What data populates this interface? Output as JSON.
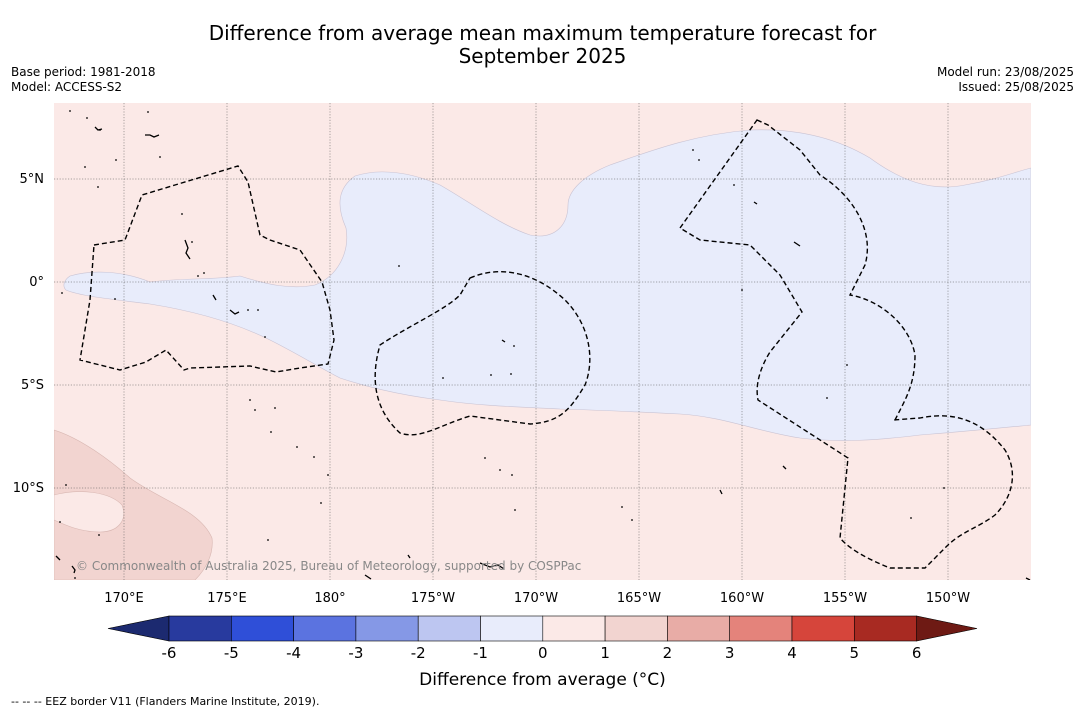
{
  "title": {
    "line1": "Difference from average mean maximum temperature forecast for",
    "line2": "September 2025"
  },
  "meta": {
    "base_period": "Base period: 1981-2018",
    "model": "Model: ACCESS-S2",
    "model_run": "Model run: 23/08/2025",
    "issued": "Issued: 25/08/2025"
  },
  "map": {
    "lon_labels": [
      "170°E",
      "175°E",
      "180°",
      "175°W",
      "170°W",
      "165°W",
      "160°W",
      "155°W",
      "150°W"
    ],
    "lat_labels": [
      "5°N",
      "0°",
      "5°S",
      "10°S"
    ],
    "copyright": "© Commonwealth of Australia 2025, Bureau of Meteorology, supported by COSPPac",
    "colors": {
      "anomaly_0_to_1": "#fbe9e7",
      "anomaly_1_to_2": "#f2d4d0",
      "anomaly_-1_to_0": "#e8ecfb"
    }
  },
  "colorbar": {
    "ticks": [
      "-6",
      "-5",
      "-4",
      "-3",
      "-2",
      "-1",
      "0",
      "1",
      "2",
      "3",
      "4",
      "5",
      "6"
    ],
    "colors": [
      "#283a9e",
      "#2f4fd8",
      "#5b73e0",
      "#8598e6",
      "#bdc6f1",
      "#e8ecfb",
      "#fbe9e7",
      "#f2d4d0",
      "#e8aca6",
      "#e4837b",
      "#d6453b",
      "#a82a22"
    ],
    "low_extend_color": "#1c2a70",
    "high_extend_color": "#6e1a14",
    "label": "Difference from average (°C)"
  },
  "footnote": "--  --  -- EEZ border V11 (Flanders Marine Institute, 2019)."
}
